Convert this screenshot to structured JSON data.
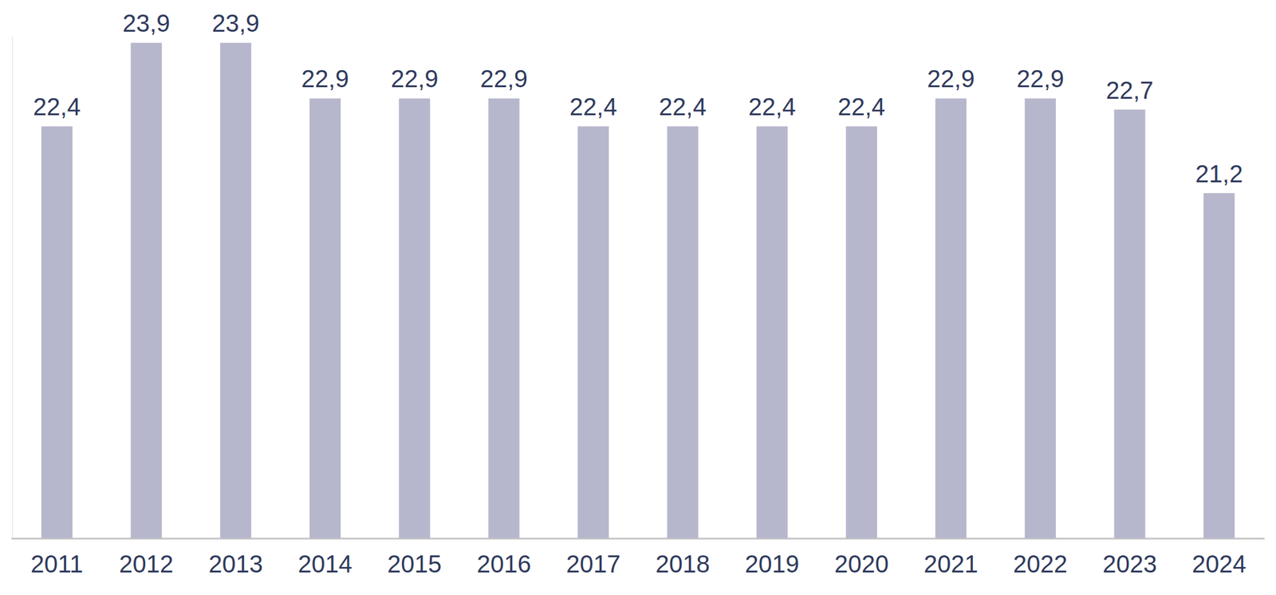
{
  "chart_data": {
    "type": "bar",
    "categories": [
      "2011",
      "2012",
      "2013",
      "2014",
      "2015",
      "2016",
      "2017",
      "2018",
      "2019",
      "2020",
      "2021",
      "2022",
      "2023",
      "2024"
    ],
    "values": [
      22.4,
      23.9,
      23.9,
      22.9,
      22.9,
      22.9,
      22.4,
      22.4,
      22.4,
      22.4,
      22.9,
      22.9,
      22.7,
      21.2
    ],
    "value_labels": [
      "22,4",
      "23,9",
      "23,9",
      "22,9",
      "22,9",
      "22,9",
      "22,4",
      "22,4",
      "22,4",
      "22,4",
      "22,9",
      "22,9",
      "22,7",
      "21,2"
    ],
    "color": "#b6b7cc",
    "ylim": [
      15,
      24
    ],
    "grid": false,
    "data_labels": true,
    "tick_labels": "x"
  }
}
